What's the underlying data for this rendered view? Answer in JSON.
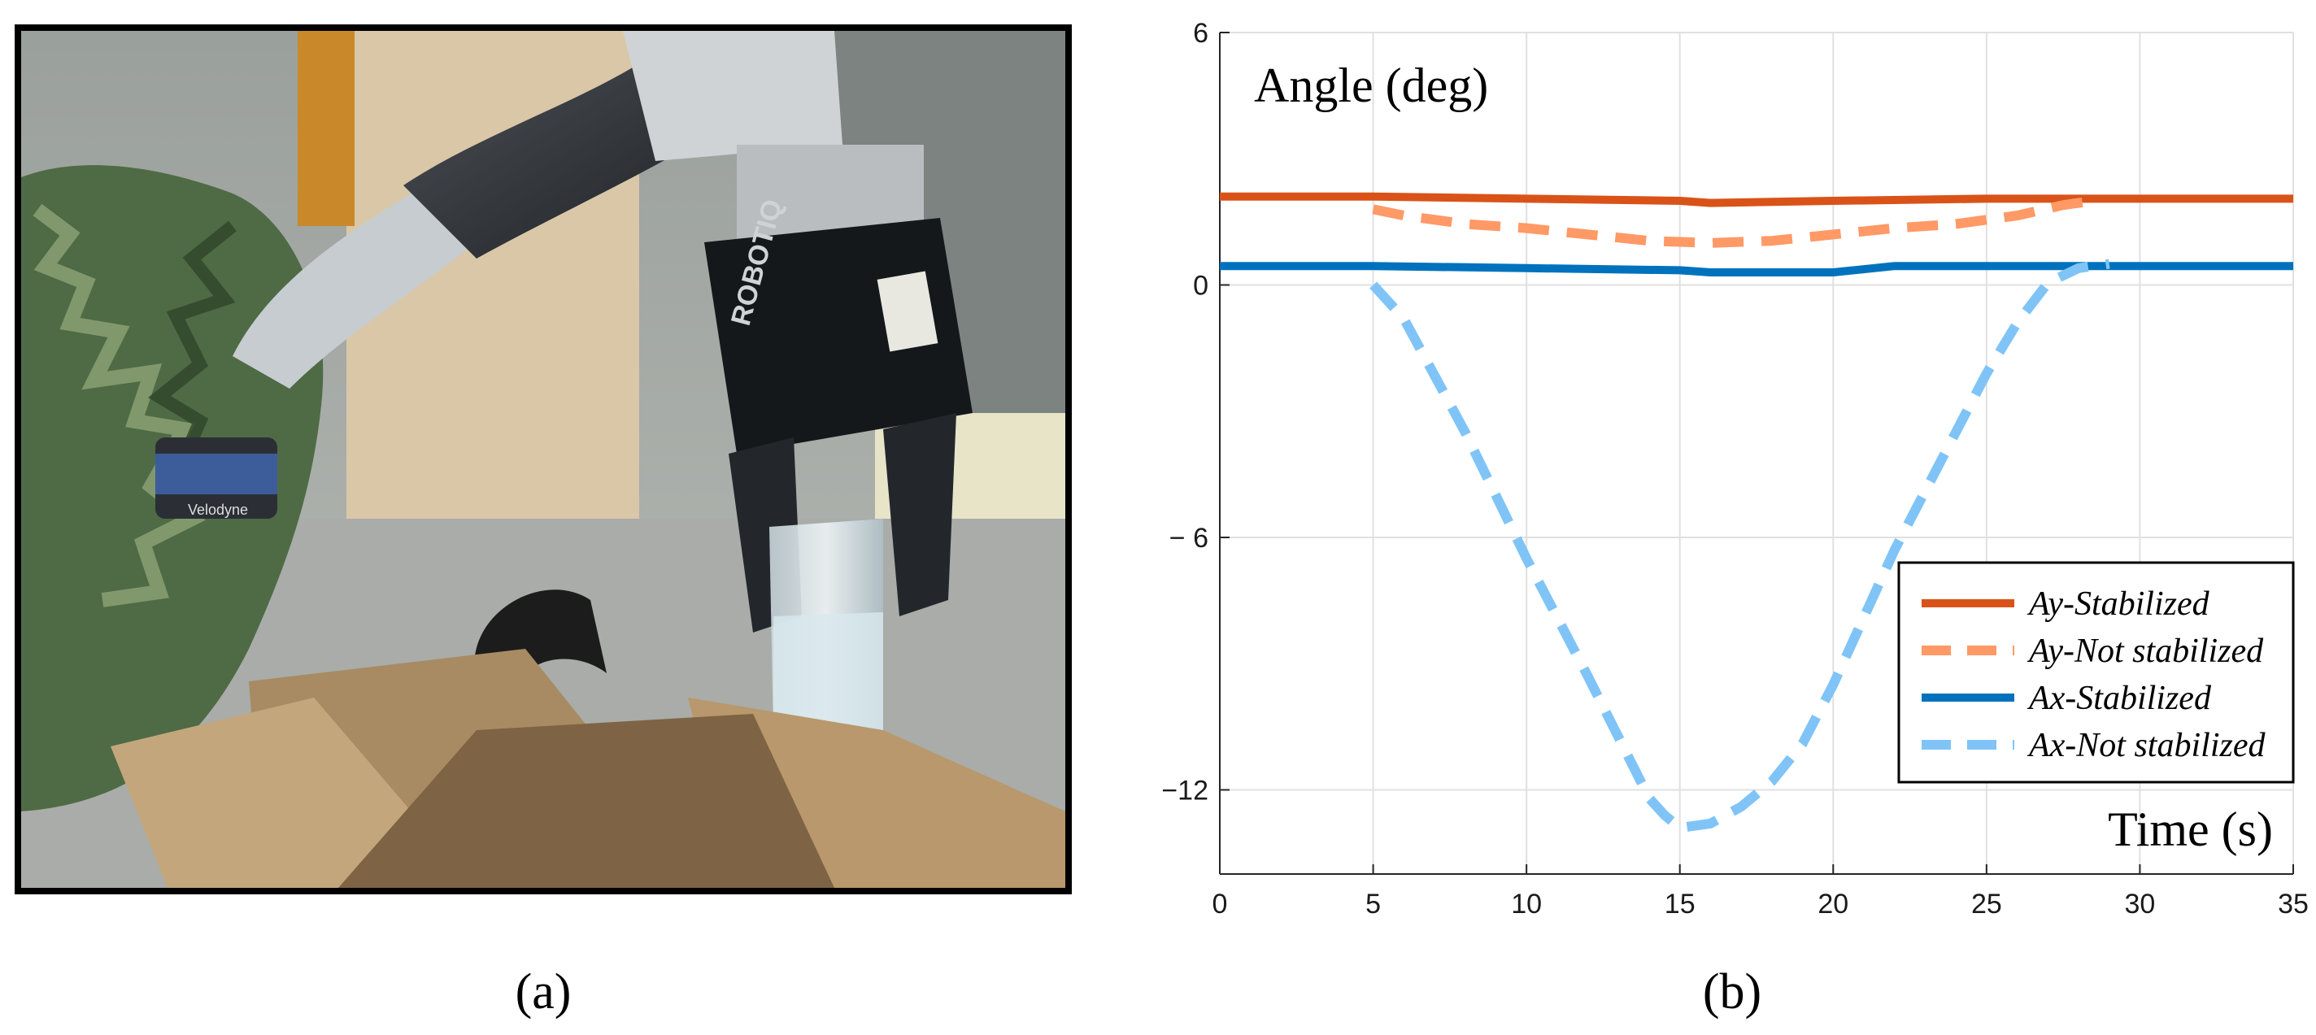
{
  "panel_a": {
    "caption": "(a)",
    "photo_text": {
      "gripper_brand": "ROBOTIQ",
      "lidar_brand": "Velodyne"
    }
  },
  "panel_b": {
    "caption": "(b)"
  },
  "chart_data": {
    "type": "line",
    "xlabel": "Time (s)",
    "ylabel": "Angle (deg)",
    "xlim": [
      0,
      35
    ],
    "ylim": [
      -14,
      6
    ],
    "xticks": [
      0,
      5,
      10,
      15,
      20,
      25,
      30,
      35
    ],
    "yticks": [
      6,
      0,
      -6,
      -12
    ],
    "ytick_labels": [
      "6",
      "0",
      "− 6",
      "−12"
    ],
    "grid": true,
    "legend_position": "bottom-right",
    "series": [
      {
        "name": "Ay-Stabilized",
        "color": "#d95319",
        "style": "solid",
        "x": [
          0,
          5,
          10,
          15,
          16,
          20,
          25,
          30,
          35
        ],
        "y": [
          2.1,
          2.1,
          2.05,
          2.0,
          1.95,
          2.0,
          2.05,
          2.05,
          2.05
        ]
      },
      {
        "name": "Ay-Not stabilized",
        "color": "#ff9966",
        "style": "dashed",
        "x": [
          5,
          6,
          8,
          10,
          12,
          14,
          16,
          18,
          20,
          22,
          24,
          26,
          27.5,
          28.5
        ],
        "y": [
          1.8,
          1.65,
          1.45,
          1.35,
          1.2,
          1.05,
          1.0,
          1.05,
          1.2,
          1.35,
          1.45,
          1.65,
          1.9,
          2.0
        ]
      },
      {
        "name": "Ax-Stabilized",
        "color": "#0072bd",
        "style": "solid",
        "x": [
          0,
          5,
          10,
          15,
          16,
          20,
          22,
          25,
          30,
          35
        ],
        "y": [
          0.45,
          0.45,
          0.4,
          0.35,
          0.3,
          0.3,
          0.45,
          0.45,
          0.45,
          0.45
        ]
      },
      {
        "name": "Ax-Not stabilized",
        "color": "#80c4f7",
        "style": "dashed",
        "x": [
          5,
          6,
          8,
          10,
          12,
          14,
          14.5,
          15,
          16,
          17,
          18,
          19,
          20,
          22,
          24,
          25,
          26,
          27,
          28,
          29
        ],
        "y": [
          0,
          -0.8,
          -3.5,
          -6.5,
          -9.3,
          -12.2,
          -12.6,
          -12.9,
          -12.8,
          -12.4,
          -11.8,
          -10.9,
          -9.5,
          -6.3,
          -3.5,
          -2.1,
          -0.9,
          0.05,
          0.4,
          0.5
        ]
      }
    ]
  }
}
